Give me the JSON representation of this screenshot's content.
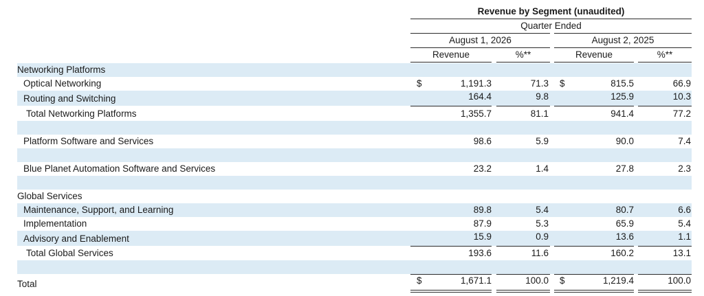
{
  "header": {
    "title": "Revenue by Segment (unaudited)",
    "subtitle": "Quarter Ended",
    "period1": "August 1, 2026",
    "period2": "August 2, 2025",
    "col_revenue": "Revenue",
    "col_pct": "%**"
  },
  "rows": [
    {
      "label": "Networking Platforms",
      "dollar1": "",
      "rev1": "",
      "pct1": "",
      "dollar2": "",
      "rev2": "",
      "pct2": ""
    },
    {
      "label": "Optical Networking",
      "dollar1": "$",
      "rev1": "1,191.3",
      "pct1": "71.3",
      "dollar2": "$",
      "rev2": "815.5",
      "pct2": "66.9"
    },
    {
      "label": "Routing and Switching",
      "dollar1": "",
      "rev1": "164.4",
      "pct1": "9.8",
      "dollar2": "",
      "rev2": "125.9",
      "pct2": "10.3"
    },
    {
      "label": "Total Networking Platforms",
      "dollar1": "",
      "rev1": "1,355.7",
      "pct1": "81.1",
      "dollar2": "",
      "rev2": "941.4",
      "pct2": "77.2"
    },
    {
      "label": "Platform Software and Services",
      "dollar1": "",
      "rev1": "98.6",
      "pct1": "5.9",
      "dollar2": "",
      "rev2": "90.0",
      "pct2": "7.4"
    },
    {
      "label": "Blue Planet Automation Software and Services",
      "dollar1": "",
      "rev1": "23.2",
      "pct1": "1.4",
      "dollar2": "",
      "rev2": "27.8",
      "pct2": "2.3"
    },
    {
      "label": "Global Services",
      "dollar1": "",
      "rev1": "",
      "pct1": "",
      "dollar2": "",
      "rev2": "",
      "pct2": ""
    },
    {
      "label": "Maintenance, Support, and Learning",
      "dollar1": "",
      "rev1": "89.8",
      "pct1": "5.4",
      "dollar2": "",
      "rev2": "80.7",
      "pct2": "6.6"
    },
    {
      "label": "Implementation",
      "dollar1": "",
      "rev1": "87.9",
      "pct1": "5.3",
      "dollar2": "",
      "rev2": "65.9",
      "pct2": "5.4"
    },
    {
      "label": "Advisory and Enablement",
      "dollar1": "",
      "rev1": "15.9",
      "pct1": "0.9",
      "dollar2": "",
      "rev2": "13.6",
      "pct2": "1.1"
    },
    {
      "label": "Total Global Services",
      "dollar1": "",
      "rev1": "193.6",
      "pct1": "11.6",
      "dollar2": "",
      "rev2": "160.2",
      "pct2": "13.1"
    },
    {
      "label": "Total",
      "dollar1": "$",
      "rev1": "1,671.1",
      "pct1": "100.0",
      "dollar2": "$",
      "rev2": "1,219.4",
      "pct2": "100.0"
    }
  ]
}
